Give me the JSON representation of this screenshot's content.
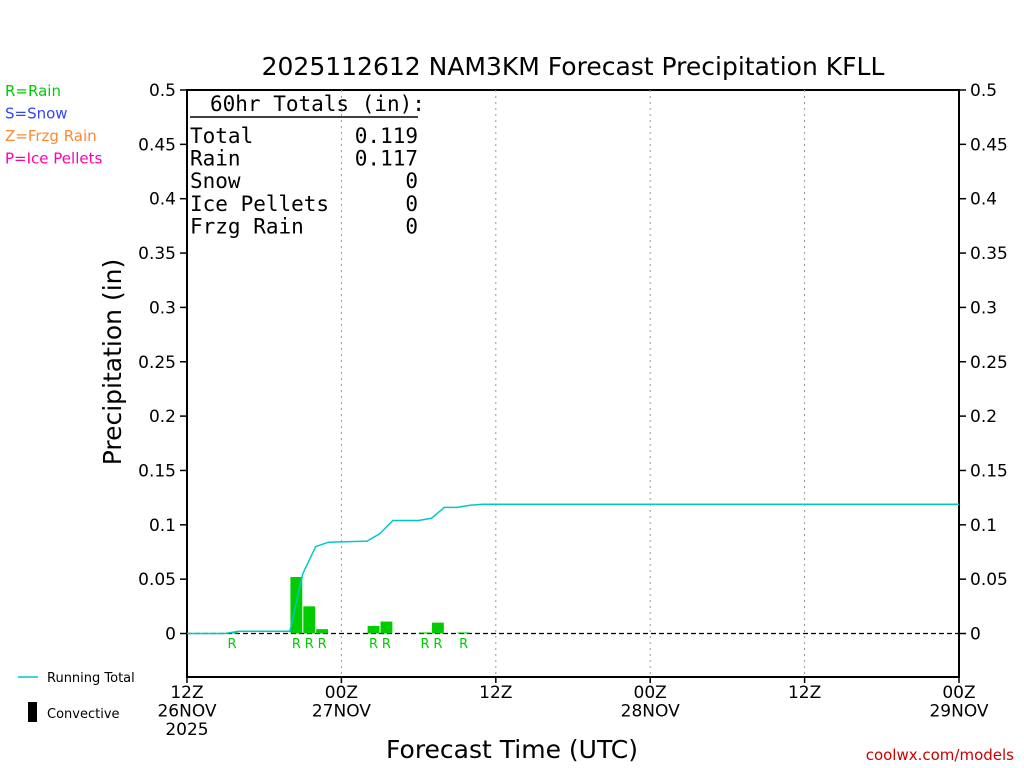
{
  "legend_left": [
    {
      "text": "R=Rain",
      "color": "#00cc00"
    },
    {
      "text": "S=Snow",
      "color": "#3344ff"
    },
    {
      "text": "Z=Frzg Rain",
      "color": "#ff8833"
    },
    {
      "text": "P=Ice Pellets",
      "color": "#ff00aa"
    }
  ],
  "legend_bottom": {
    "running_total": "Running Total",
    "convective": "Convective"
  },
  "totals_box": {
    "title": "60hr Totals (in):",
    "rows": [
      {
        "label": "Total",
        "value": "0.119"
      },
      {
        "label": "Rain",
        "value": "0.117"
      },
      {
        "label": "Snow",
        "value": "0"
      },
      {
        "label": "Ice Pellets",
        "value": "0"
      },
      {
        "label": "Frzg Rain",
        "value": "0"
      }
    ]
  },
  "credit": "coolwx.com/models",
  "colors": {
    "rain_bar": "#00cc00",
    "running_total": "#00c8c8",
    "credit": "#cc0000",
    "axis": "#000000",
    "grid": "#999999"
  },
  "chart_data": {
    "type": "bar",
    "title": "2025112612 NAM3KM Forecast Precipitation KFLL",
    "xlabel": "Forecast Time (UTC)",
    "ylabel": "Precipitation (in)",
    "ylim": [
      -0.04,
      0.5
    ],
    "yticks": [
      "0",
      "0.05",
      "0.1",
      "0.15",
      "0.2",
      "0.25",
      "0.3",
      "0.35",
      "0.4",
      "0.45",
      "0.5"
    ],
    "x_unit": "forecast hour",
    "xlim": [
      0,
      60
    ],
    "xticks": [
      {
        "hour": 0,
        "lines": [
          "12Z",
          "26NOV",
          "2025"
        ]
      },
      {
        "hour": 12,
        "lines": [
          "00Z",
          "27NOV"
        ]
      },
      {
        "hour": 24,
        "lines": [
          "12Z"
        ]
      },
      {
        "hour": 36,
        "lines": [
          "00Z",
          "28NOV"
        ]
      },
      {
        "hour": 48,
        "lines": [
          "12Z"
        ]
      },
      {
        "hour": 60,
        "lines": [
          "00Z",
          "29NOV"
        ]
      }
    ],
    "grid_hours": [
      12,
      24,
      36,
      48
    ],
    "bars": [
      {
        "hour": 4,
        "value": 0.001,
        "type": "R"
      },
      {
        "hour": 9,
        "value": 0.052,
        "type": "R"
      },
      {
        "hour": 10,
        "value": 0.025,
        "type": "R"
      },
      {
        "hour": 11,
        "value": 0.004,
        "type": "R"
      },
      {
        "hour": 15,
        "value": 0.007,
        "type": "R"
      },
      {
        "hour": 16,
        "value": 0.011,
        "type": "R"
      },
      {
        "hour": 19,
        "value": 0.001,
        "type": "R"
      },
      {
        "hour": 20,
        "value": 0.01,
        "type": "R"
      },
      {
        "hour": 22,
        "value": 0.001,
        "type": "R"
      }
    ],
    "running_total": {
      "name": "Running Total",
      "points": [
        [
          0,
          0
        ],
        [
          3,
          0
        ],
        [
          4,
          0.002
        ],
        [
          8,
          0.002
        ],
        [
          9,
          0.055
        ],
        [
          10,
          0.08
        ],
        [
          11,
          0.084
        ],
        [
          14,
          0.085
        ],
        [
          15,
          0.092
        ],
        [
          16,
          0.104
        ],
        [
          18,
          0.104
        ],
        [
          19,
          0.106
        ],
        [
          20,
          0.116
        ],
        [
          21,
          0.116
        ],
        [
          22,
          0.118
        ],
        [
          23,
          0.119
        ],
        [
          59,
          0.119
        ],
        [
          60,
          0.119
        ]
      ]
    }
  }
}
